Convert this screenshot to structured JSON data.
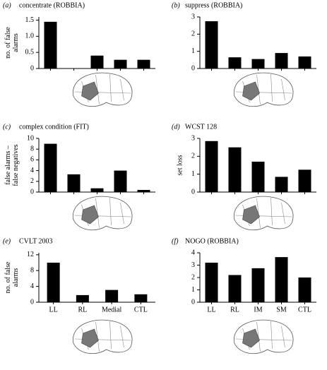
{
  "chart_data": [
    {
      "type": "bar",
      "label": "(a)",
      "title": "concentrate (ROBBIA)",
      "ylabel": [
        "no. of false",
        "alarms"
      ],
      "categories": [
        null,
        null,
        null,
        null,
        null
      ],
      "values": [
        1.45,
        0,
        0.4,
        0.27,
        0.27
      ],
      "color": "#000000",
      "ylim": [
        0,
        1.6
      ],
      "yticks": [
        0,
        0.5,
        {
          "value": 1,
          "label": "1.0"
        },
        1.5
      ]
    },
    {
      "type": "bar",
      "label": "(b)",
      "title": "suppress (ROBBIA)",
      "categories": [
        null,
        null,
        null,
        null,
        null
      ],
      "values": [
        2.75,
        0.65,
        0.55,
        0.9,
        0.7
      ],
      "color": "#000000",
      "ylim": [
        0,
        3
      ],
      "yticks": [
        0,
        1,
        2,
        3
      ]
    },
    {
      "type": "bar",
      "label": "(c)",
      "title": "complex condition (FIT)",
      "ylabel": [
        "false alarms –",
        "false negatives"
      ],
      "categories": [
        null,
        null,
        null,
        null,
        null
      ],
      "values": [
        9,
        3.3,
        0.7,
        4,
        0.4
      ],
      "color": "#000000",
      "ylim": [
        0,
        10
      ],
      "yticks": [
        0,
        2,
        4,
        6,
        8,
        10
      ]
    },
    {
      "type": "bar",
      "label": "(d)",
      "title": "WCST 128",
      "ylabel": [
        "set loss"
      ],
      "categories": [
        null,
        null,
        null,
        null,
        null
      ],
      "values": [
        2.85,
        2.5,
        1.7,
        0.85,
        1.25
      ],
      "color": "#000000",
      "ylim": [
        0,
        3
      ],
      "yticks": [
        0,
        1,
        2,
        3
      ]
    },
    {
      "type": "bar",
      "label": "(e)",
      "title": "CVLT 2003",
      "ylabel": [
        "no. of false",
        "alarms"
      ],
      "categories": [
        "LL",
        "RL",
        "Medial",
        "CTL"
      ],
      "values": [
        10,
        1.8,
        3.1,
        2
      ],
      "color": "#000000",
      "ylim": [
        0,
        12.5
      ],
      "yticks": [
        0,
        4,
        8,
        12
      ]
    },
    {
      "type": "bar",
      "label": "(f)",
      "title": "NOGO (ROBBIA)",
      "categories": [
        "LL",
        "RL",
        "IM",
        "SM",
        "CTL"
      ],
      "values": [
        3.2,
        2.2,
        2.75,
        3.65,
        2
      ],
      "color": "#000000",
      "ylim": [
        0,
        4
      ],
      "yticks": [
        0,
        1,
        2,
        3,
        4
      ]
    }
  ]
}
